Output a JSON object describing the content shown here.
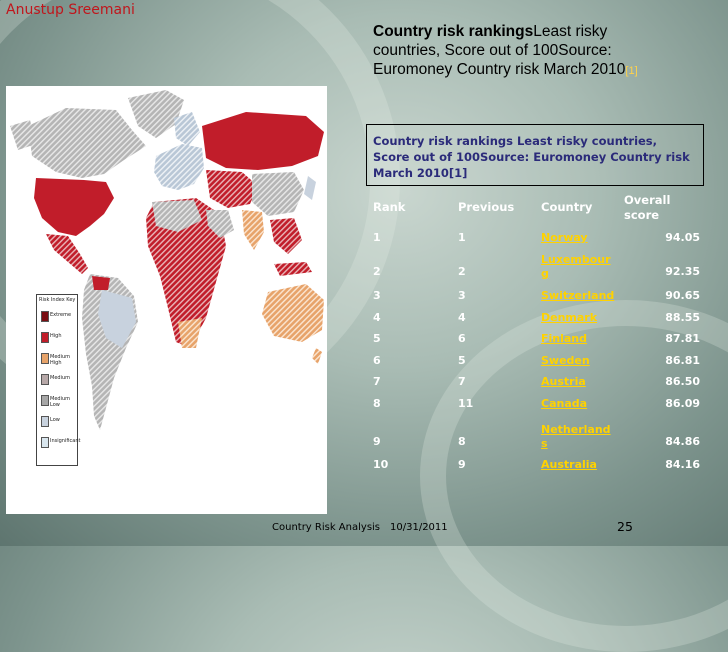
{
  "author": "Anustup Sreemani",
  "title": {
    "bold": "Country risk rankings",
    "rest": "Least risky countries, Score out of 100Source: Euromoney Country risk March 2010",
    "sup": "[1]"
  },
  "caption": "Country risk rankings Least risky countries, Score out of 100Source: Euromoney Country risk March 2010[1]",
  "legend": {
    "title": "Risk Index Key",
    "items": [
      {
        "label": "Extreme",
        "color": "#7a0d12"
      },
      {
        "label": "High",
        "color": "#c11d2a"
      },
      {
        "label": "Medium High",
        "color": "#e7a36a"
      },
      {
        "label": "Medium",
        "color": "#b7a8a8"
      },
      {
        "label": "Medium Low",
        "color": "#a7a7a7"
      },
      {
        "label": "Low",
        "color": "#c8d2de"
      },
      {
        "label": "Insignificant",
        "color": "#d9e6ee"
      }
    ]
  },
  "table": {
    "headers": [
      "Rank",
      "Previous",
      "Country",
      "Overall score"
    ],
    "rows": [
      {
        "rank": "1",
        "previous": "1",
        "country": "Norway",
        "score": "94.05"
      },
      {
        "rank": "2",
        "previous": "2",
        "country": "Luxembourg",
        "score": "92.35"
      },
      {
        "rank": "3",
        "previous": "3",
        "country": "Switzerland",
        "score": "90.65"
      },
      {
        "rank": "4",
        "previous": "4",
        "country": "Denmark",
        "score": "88.55"
      },
      {
        "rank": "5",
        "previous": "6",
        "country": "Finland",
        "score": "87.81"
      },
      {
        "rank": "6",
        "previous": "5",
        "country": "Sweden",
        "score": "86.81"
      },
      {
        "rank": "7",
        "previous": "7",
        "country": "Austria",
        "score": "86.50"
      },
      {
        "rank": "8",
        "previous": "11",
        "country": "Canada",
        "score": "86.09"
      },
      {
        "rank": "9",
        "previous": "8",
        "country": "Netherlands",
        "score": "84.86"
      },
      {
        "rank": "10",
        "previous": "9",
        "country": "Australia",
        "score": "84.16"
      }
    ]
  },
  "footer": {
    "course": "Country Risk Analysis",
    "date": "10/31/2011",
    "page": "25"
  },
  "colors": {
    "author": "#c0161c",
    "link": "#ffd200",
    "caption_text": "#2b2b7a",
    "extreme": "#7a0d12",
    "high": "#c11d2a",
    "medium_high": "#e7a36a",
    "medium_low": "#a7a7a7",
    "low": "#c8d2de"
  }
}
